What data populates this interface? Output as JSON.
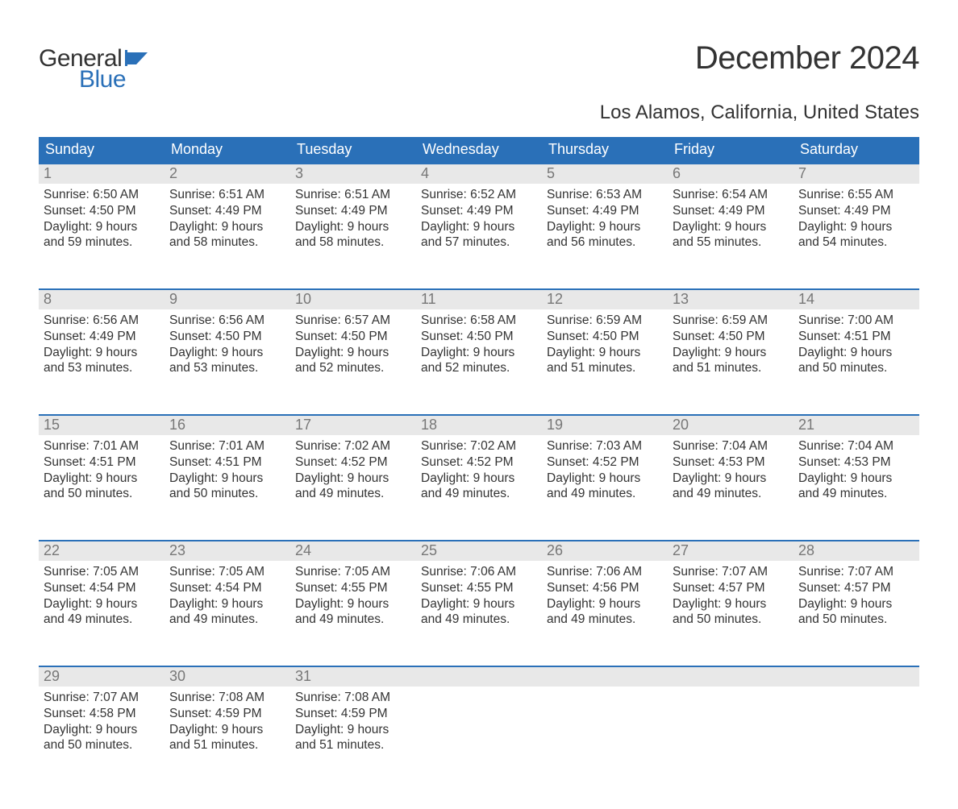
{
  "brand": {
    "word1": "General",
    "word2": "Blue",
    "flag_color": "#2a70b8",
    "text_color": "#333333"
  },
  "header": {
    "title": "December 2024",
    "location": "Los Alamos, California, United States"
  },
  "colors": {
    "header_bg": "#2a70b8",
    "header_text": "#ffffff",
    "daynum_bg": "#e8e8e8",
    "daynum_text": "#777777",
    "body_text": "#333333",
    "row_divider": "#2a70b8",
    "page_bg": "#ffffff"
  },
  "typography": {
    "title_fontsize": 40,
    "location_fontsize": 24,
    "dayhead_fontsize": 18,
    "daynum_fontsize": 18,
    "body_fontsize": 15.5
  },
  "calendar": {
    "type": "table",
    "columns": [
      "Sunday",
      "Monday",
      "Tuesday",
      "Wednesday",
      "Thursday",
      "Friday",
      "Saturday"
    ],
    "weeks": [
      [
        {
          "day": "1",
          "sunrise": "Sunrise: 6:50 AM",
          "sunset": "Sunset: 4:50 PM",
          "daylight1": "Daylight: 9 hours",
          "daylight2": "and 59 minutes."
        },
        {
          "day": "2",
          "sunrise": "Sunrise: 6:51 AM",
          "sunset": "Sunset: 4:49 PM",
          "daylight1": "Daylight: 9 hours",
          "daylight2": "and 58 minutes."
        },
        {
          "day": "3",
          "sunrise": "Sunrise: 6:51 AM",
          "sunset": "Sunset: 4:49 PM",
          "daylight1": "Daylight: 9 hours",
          "daylight2": "and 58 minutes."
        },
        {
          "day": "4",
          "sunrise": "Sunrise: 6:52 AM",
          "sunset": "Sunset: 4:49 PM",
          "daylight1": "Daylight: 9 hours",
          "daylight2": "and 57 minutes."
        },
        {
          "day": "5",
          "sunrise": "Sunrise: 6:53 AM",
          "sunset": "Sunset: 4:49 PM",
          "daylight1": "Daylight: 9 hours",
          "daylight2": "and 56 minutes."
        },
        {
          "day": "6",
          "sunrise": "Sunrise: 6:54 AM",
          "sunset": "Sunset: 4:49 PM",
          "daylight1": "Daylight: 9 hours",
          "daylight2": "and 55 minutes."
        },
        {
          "day": "7",
          "sunrise": "Sunrise: 6:55 AM",
          "sunset": "Sunset: 4:49 PM",
          "daylight1": "Daylight: 9 hours",
          "daylight2": "and 54 minutes."
        }
      ],
      [
        {
          "day": "8",
          "sunrise": "Sunrise: 6:56 AM",
          "sunset": "Sunset: 4:49 PM",
          "daylight1": "Daylight: 9 hours",
          "daylight2": "and 53 minutes."
        },
        {
          "day": "9",
          "sunrise": "Sunrise: 6:56 AM",
          "sunset": "Sunset: 4:50 PM",
          "daylight1": "Daylight: 9 hours",
          "daylight2": "and 53 minutes."
        },
        {
          "day": "10",
          "sunrise": "Sunrise: 6:57 AM",
          "sunset": "Sunset: 4:50 PM",
          "daylight1": "Daylight: 9 hours",
          "daylight2": "and 52 minutes."
        },
        {
          "day": "11",
          "sunrise": "Sunrise: 6:58 AM",
          "sunset": "Sunset: 4:50 PM",
          "daylight1": "Daylight: 9 hours",
          "daylight2": "and 52 minutes."
        },
        {
          "day": "12",
          "sunrise": "Sunrise: 6:59 AM",
          "sunset": "Sunset: 4:50 PM",
          "daylight1": "Daylight: 9 hours",
          "daylight2": "and 51 minutes."
        },
        {
          "day": "13",
          "sunrise": "Sunrise: 6:59 AM",
          "sunset": "Sunset: 4:50 PM",
          "daylight1": "Daylight: 9 hours",
          "daylight2": "and 51 minutes."
        },
        {
          "day": "14",
          "sunrise": "Sunrise: 7:00 AM",
          "sunset": "Sunset: 4:51 PM",
          "daylight1": "Daylight: 9 hours",
          "daylight2": "and 50 minutes."
        }
      ],
      [
        {
          "day": "15",
          "sunrise": "Sunrise: 7:01 AM",
          "sunset": "Sunset: 4:51 PM",
          "daylight1": "Daylight: 9 hours",
          "daylight2": "and 50 minutes."
        },
        {
          "day": "16",
          "sunrise": "Sunrise: 7:01 AM",
          "sunset": "Sunset: 4:51 PM",
          "daylight1": "Daylight: 9 hours",
          "daylight2": "and 50 minutes."
        },
        {
          "day": "17",
          "sunrise": "Sunrise: 7:02 AM",
          "sunset": "Sunset: 4:52 PM",
          "daylight1": "Daylight: 9 hours",
          "daylight2": "and 49 minutes."
        },
        {
          "day": "18",
          "sunrise": "Sunrise: 7:02 AM",
          "sunset": "Sunset: 4:52 PM",
          "daylight1": "Daylight: 9 hours",
          "daylight2": "and 49 minutes."
        },
        {
          "day": "19",
          "sunrise": "Sunrise: 7:03 AM",
          "sunset": "Sunset: 4:52 PM",
          "daylight1": "Daylight: 9 hours",
          "daylight2": "and 49 minutes."
        },
        {
          "day": "20",
          "sunrise": "Sunrise: 7:04 AM",
          "sunset": "Sunset: 4:53 PM",
          "daylight1": "Daylight: 9 hours",
          "daylight2": "and 49 minutes."
        },
        {
          "day": "21",
          "sunrise": "Sunrise: 7:04 AM",
          "sunset": "Sunset: 4:53 PM",
          "daylight1": "Daylight: 9 hours",
          "daylight2": "and 49 minutes."
        }
      ],
      [
        {
          "day": "22",
          "sunrise": "Sunrise: 7:05 AM",
          "sunset": "Sunset: 4:54 PM",
          "daylight1": "Daylight: 9 hours",
          "daylight2": "and 49 minutes."
        },
        {
          "day": "23",
          "sunrise": "Sunrise: 7:05 AM",
          "sunset": "Sunset: 4:54 PM",
          "daylight1": "Daylight: 9 hours",
          "daylight2": "and 49 minutes."
        },
        {
          "day": "24",
          "sunrise": "Sunrise: 7:05 AM",
          "sunset": "Sunset: 4:55 PM",
          "daylight1": "Daylight: 9 hours",
          "daylight2": "and 49 minutes."
        },
        {
          "day": "25",
          "sunrise": "Sunrise: 7:06 AM",
          "sunset": "Sunset: 4:55 PM",
          "daylight1": "Daylight: 9 hours",
          "daylight2": "and 49 minutes."
        },
        {
          "day": "26",
          "sunrise": "Sunrise: 7:06 AM",
          "sunset": "Sunset: 4:56 PM",
          "daylight1": "Daylight: 9 hours",
          "daylight2": "and 49 minutes."
        },
        {
          "day": "27",
          "sunrise": "Sunrise: 7:07 AM",
          "sunset": "Sunset: 4:57 PM",
          "daylight1": "Daylight: 9 hours",
          "daylight2": "and 50 minutes."
        },
        {
          "day": "28",
          "sunrise": "Sunrise: 7:07 AM",
          "sunset": "Sunset: 4:57 PM",
          "daylight1": "Daylight: 9 hours",
          "daylight2": "and 50 minutes."
        }
      ],
      [
        {
          "day": "29",
          "sunrise": "Sunrise: 7:07 AM",
          "sunset": "Sunset: 4:58 PM",
          "daylight1": "Daylight: 9 hours",
          "daylight2": "and 50 minutes."
        },
        {
          "day": "30",
          "sunrise": "Sunrise: 7:08 AM",
          "sunset": "Sunset: 4:59 PM",
          "daylight1": "Daylight: 9 hours",
          "daylight2": "and 51 minutes."
        },
        {
          "day": "31",
          "sunrise": "Sunrise: 7:08 AM",
          "sunset": "Sunset: 4:59 PM",
          "daylight1": "Daylight: 9 hours",
          "daylight2": "and 51 minutes."
        },
        {
          "day": "",
          "sunrise": "",
          "sunset": "",
          "daylight1": "",
          "daylight2": ""
        },
        {
          "day": "",
          "sunrise": "",
          "sunset": "",
          "daylight1": "",
          "daylight2": ""
        },
        {
          "day": "",
          "sunrise": "",
          "sunset": "",
          "daylight1": "",
          "daylight2": ""
        },
        {
          "day": "",
          "sunrise": "",
          "sunset": "",
          "daylight1": "",
          "daylight2": ""
        }
      ]
    ]
  }
}
